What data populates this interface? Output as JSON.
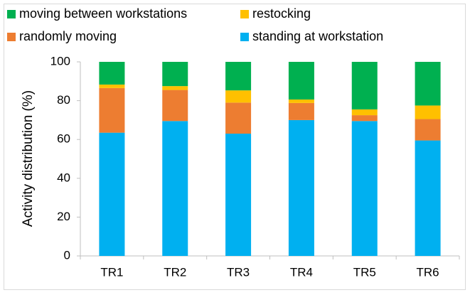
{
  "chart_data": {
    "type": "stacked_bar",
    "y_label": "Activity distribution (%)",
    "categories": [
      "TR1",
      "TR2",
      "TR3",
      "TR4",
      "TR5",
      "TR6"
    ],
    "series": [
      {
        "name": "standing at workstation",
        "color": "#00b0f0",
        "values": [
          63.5,
          69.5,
          63,
          70,
          69.5,
          59.5
        ]
      },
      {
        "name": "randomly moving",
        "color": "#ed7d31",
        "values": [
          23,
          16,
          16,
          8.8,
          3,
          11
        ]
      },
      {
        "name": "restocking",
        "color": "#ffc000",
        "values": [
          1.8,
          2,
          6.3,
          1.8,
          3,
          7
        ]
      },
      {
        "name": "moving between workstations",
        "color": "#00b050",
        "values": [
          11.7,
          12.5,
          14.7,
          19.4,
          24.5,
          22.5
        ]
      }
    ],
    "ylim": [
      0,
      100
    ],
    "yticks": [
      0,
      20,
      40,
      60,
      80,
      100
    ],
    "grid": false
  }
}
